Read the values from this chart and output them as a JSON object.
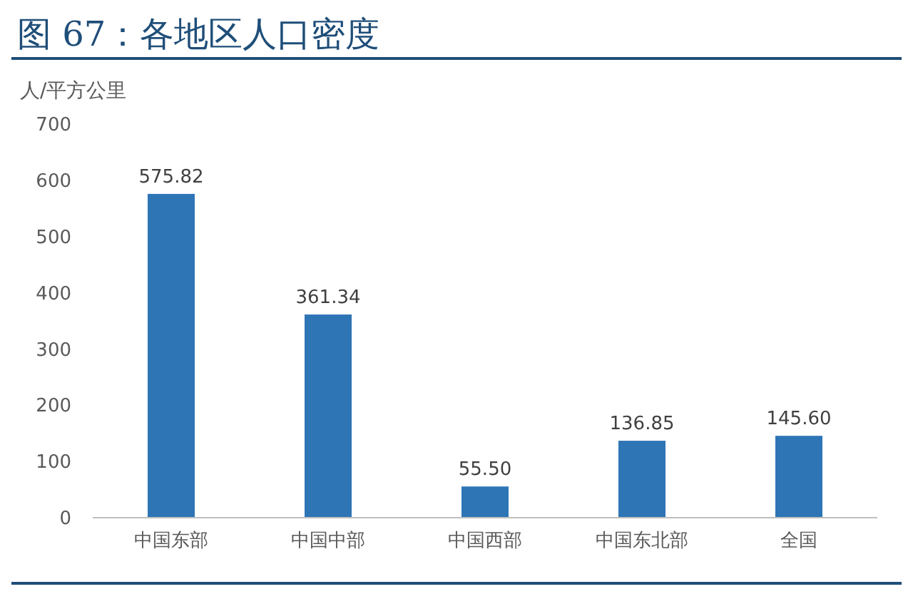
{
  "chart_data": {
    "type": "bar",
    "title": "图 67：各地区人口密度",
    "ylabel": "人/平方公里",
    "categories": [
      "中国东部",
      "中国中部",
      "中国西部",
      "中国东北部",
      "全国"
    ],
    "values": [
      575.82,
      361.34,
      55.5,
      136.85,
      145.6
    ],
    "value_labels": [
      "575.82",
      "361.34",
      "55.50",
      "136.85",
      "145.60"
    ],
    "color": "#2e75b6",
    "ylim": [
      0,
      700
    ],
    "yticks": [
      0,
      100,
      200,
      300,
      400,
      500,
      600,
      700
    ],
    "grid": false
  }
}
